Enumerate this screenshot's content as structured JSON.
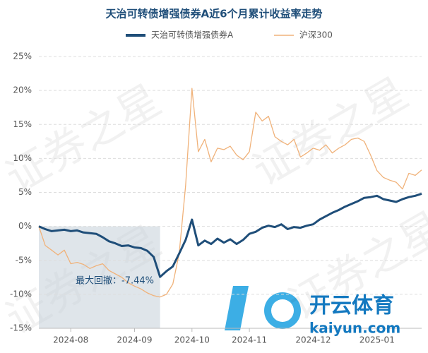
{
  "chart_data": {
    "type": "line",
    "title": "天治可转债增强债券A近6个月累计收益率走势",
    "categories": [
      null,
      null,
      null,
      null,
      null,
      "2024-08",
      null,
      null,
      null,
      null,
      null,
      null,
      null,
      null,
      null,
      "2024-09",
      null,
      null,
      null,
      null,
      null,
      null,
      null,
      null,
      "2024-10",
      null,
      null,
      null,
      null,
      null,
      null,
      null,
      null,
      "2024-11",
      null,
      null,
      null,
      null,
      null,
      null,
      null,
      null,
      null,
      "2024-12",
      null,
      null,
      null,
      null,
      null,
      null,
      null,
      null,
      null,
      "2025-01",
      null,
      null,
      null,
      null,
      null,
      null,
      null
    ],
    "series": [
      {
        "name": "天治可转债增强债券A",
        "color": "#1f4e79",
        "values": [
          0,
          -0.4,
          -0.7,
          -0.6,
          -0.5,
          -0.7,
          -0.6,
          -0.9,
          -1.0,
          -1.1,
          -1.6,
          -2.2,
          -2.5,
          -2.9,
          -2.8,
          -3.1,
          -3.2,
          -3.6,
          -4.5,
          -7.44,
          -6.6,
          -5.9,
          -4.0,
          -2.0,
          1.0,
          -2.8,
          -2.1,
          -2.6,
          -1.8,
          -2.4,
          -1.9,
          -2.6,
          -2.0,
          -1.1,
          -0.8,
          -0.2,
          0.1,
          -0.1,
          0.3,
          -0.4,
          -0.1,
          -0.2,
          0.1,
          0.3,
          1.0,
          1.5,
          2.0,
          2.4,
          2.9,
          3.3,
          3.7,
          4.2,
          4.3,
          4.5,
          4.0,
          3.8,
          3.6,
          4.0,
          4.3,
          4.5,
          4.8
        ]
      },
      {
        "name": "沪深300",
        "color": "#f0b27a",
        "values": [
          0,
          -2.8,
          -3.5,
          -4.2,
          -3.5,
          -5.5,
          -5.3,
          -5.6,
          -6.2,
          -5.8,
          -5.5,
          -6.5,
          -7.0,
          -7.5,
          -8.3,
          -8.8,
          -9.2,
          -9.8,
          -10.2,
          -10.4,
          -10.0,
          -8.5,
          -4.0,
          6.0,
          20.3,
          11.0,
          12.8,
          9.5,
          11.5,
          11.3,
          11.8,
          10.5,
          9.8,
          11.0,
          16.8,
          15.5,
          16.2,
          13.2,
          12.5,
          12.0,
          12.8,
          10.2,
          10.8,
          11.5,
          11.2,
          12.0,
          10.8,
          11.5,
          12.0,
          12.8,
          13.0,
          12.5,
          10.5,
          8.2,
          7.2,
          6.8,
          6.5,
          5.5,
          7.8,
          7.5,
          8.3
        ]
      }
    ],
    "ylim": [
      -15,
      25
    ],
    "yticks": [
      {
        "value": -15,
        "label": "-15%"
      },
      {
        "value": -10,
        "label": "-10%"
      },
      {
        "value": -5,
        "label": "-5%"
      },
      {
        "value": 0,
        "label": "0%"
      },
      {
        "value": 5,
        "label": "5%"
      },
      {
        "value": 10,
        "label": "10%"
      },
      {
        "value": 15,
        "label": "15%"
      },
      {
        "value": 20,
        "label": "20%"
      },
      {
        "value": 25,
        "label": "25%"
      }
    ],
    "grid": true,
    "legend": "top",
    "annotation": "最大回撤：-7.44%",
    "watermark": "证券之星",
    "logo": [
      "开云体育",
      "kaiyun.com"
    ]
  }
}
